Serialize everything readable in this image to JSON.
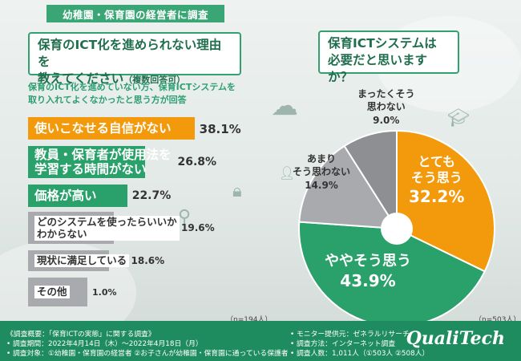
{
  "header": {
    "tag": "幼稚園・保育園の経営者に調査"
  },
  "left": {
    "question_line1": "保育のICT化を進められない理由を",
    "question_line2": "教えてください",
    "question_sub": "（複数回答可）",
    "note_line1": "保育のICT化を進めていない方、保育ICTシステムを",
    "note_line2": "取り入れてよくなかったと思う方が回答",
    "n_label": "（n=194人）"
  },
  "right": {
    "question_line1": "保育ICTシステムは",
    "question_line2": "必要だと思いますか？",
    "n_label": "（n=503人）"
  },
  "colors": {
    "green": "#2aa06a",
    "orange": "#f39a0c",
    "gray": "#a9aaad",
    "darkgray": "#8e8f92",
    "footer": "#1e8c5e"
  },
  "chart_data": [
    {
      "type": "bar",
      "title": "保育のICT化を進められない理由を教えてください（複数回答可）",
      "categories": [
        "使いこなせる自信がない",
        "教員・保育者が使用法を学習する時間がない",
        "価格が高い",
        "どのシステムを使ったらいいかわからない",
        "現状に満足している",
        "その他"
      ],
      "label_lines": [
        [
          "使いこなせる自信がない"
        ],
        [
          "教員・保育者が使用法を",
          "学習する時間がない"
        ],
        [
          "価格が高い"
        ],
        [
          "どのシステムを使ったらいいか",
          "わからない"
        ],
        [
          "現状に満足している"
        ],
        [
          "その他"
        ]
      ],
      "values": [
        38.1,
        26.8,
        22.7,
        19.6,
        18.6,
        1.0
      ],
      "value_labels": [
        "38.1%",
        "26.8%",
        "22.7%",
        "19.6%",
        "18.6%",
        "1.0%"
      ],
      "bar_colors": [
        "#f39a0c",
        "#2aa06a",
        "#2aa06a",
        "#a9aaad",
        "#a9aaad",
        "#a9aaad"
      ],
      "xlim": [
        0,
        100
      ]
    },
    {
      "type": "pie",
      "title": "保育ICTシステムは必要だと思いますか？",
      "categories": [
        "とてもそう思う",
        "ややそう思う",
        "あまりそう思わない",
        "まったくそう思わない"
      ],
      "label_lines": [
        [
          "とても",
          "そう思う"
        ],
        [
          "ややそう思う"
        ],
        [
          "あまり",
          "そう思わない"
        ],
        [
          "まったくそう",
          "思わない"
        ]
      ],
      "values": [
        32.2,
        43.9,
        14.9,
        9.0
      ],
      "value_labels": [
        "32.2%",
        "43.9%",
        "14.9%",
        "9.0%"
      ],
      "slice_colors": [
        "#f39a0c",
        "#2aa06a",
        "#a9aaad",
        "#8e8f92"
      ]
    }
  ],
  "footer": {
    "left": [
      "《調査概要：「保育ICTの実態」に関する調査》",
      "• 調査期間：2022年4月14日（木）〜2022年4月18日（月）",
      "• 調査対象：①幼稚園・保育園の経営者 ②お子さんが幼稚園・保育園に通っている保護者"
    ],
    "right": [
      "• モニター提供元：ゼネラルリサーチ",
      "• 調査方法：インターネット調査",
      "• 調査人数：1,011人（①503人 ②508人）"
    ],
    "logo": "QualiTech"
  }
}
